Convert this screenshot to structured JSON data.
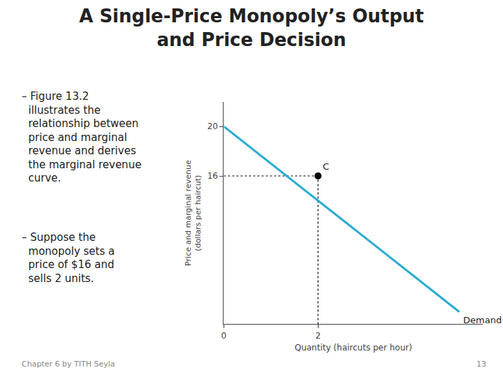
{
  "chart_data": {
    "type": "line",
    "title": "A Single-Price Monopoly’s Output\nand Price Decision",
    "xlabel": "Quantity (haircuts per hour)",
    "ylabel": "Price and marginal revenue\n(dollars per haircut)",
    "series": [
      {
        "name": "Demand",
        "color": "#29ABD4",
        "x": [
          0,
          5
        ],
        "values": [
          20,
          5
        ]
      },
      {
        "name": "C",
        "type": "scatter",
        "color": "black",
        "marker": "circle",
        "x": [
          2
        ],
        "values": [
          16
        ]
      }
    ],
    "xlim": [
      0,
      5.5
    ],
    "ylim": [
      4,
      22
    ],
    "xticks": [
      0,
      2
    ],
    "yticks": [
      16,
      20
    ],
    "grid": false,
    "annotations": [
      "– Figure 13.2\n  illustrates the\n  relationship between\n  price and marginal\n  revenue and derives\n  the marginal revenue\n  curve.",
      "– Suppose the\n  monopoly sets a\n  price of $16 and\n  sells 2 units.",
      "Chapter 6 by TITH Seyla",
      "13"
    ]
  }
}
